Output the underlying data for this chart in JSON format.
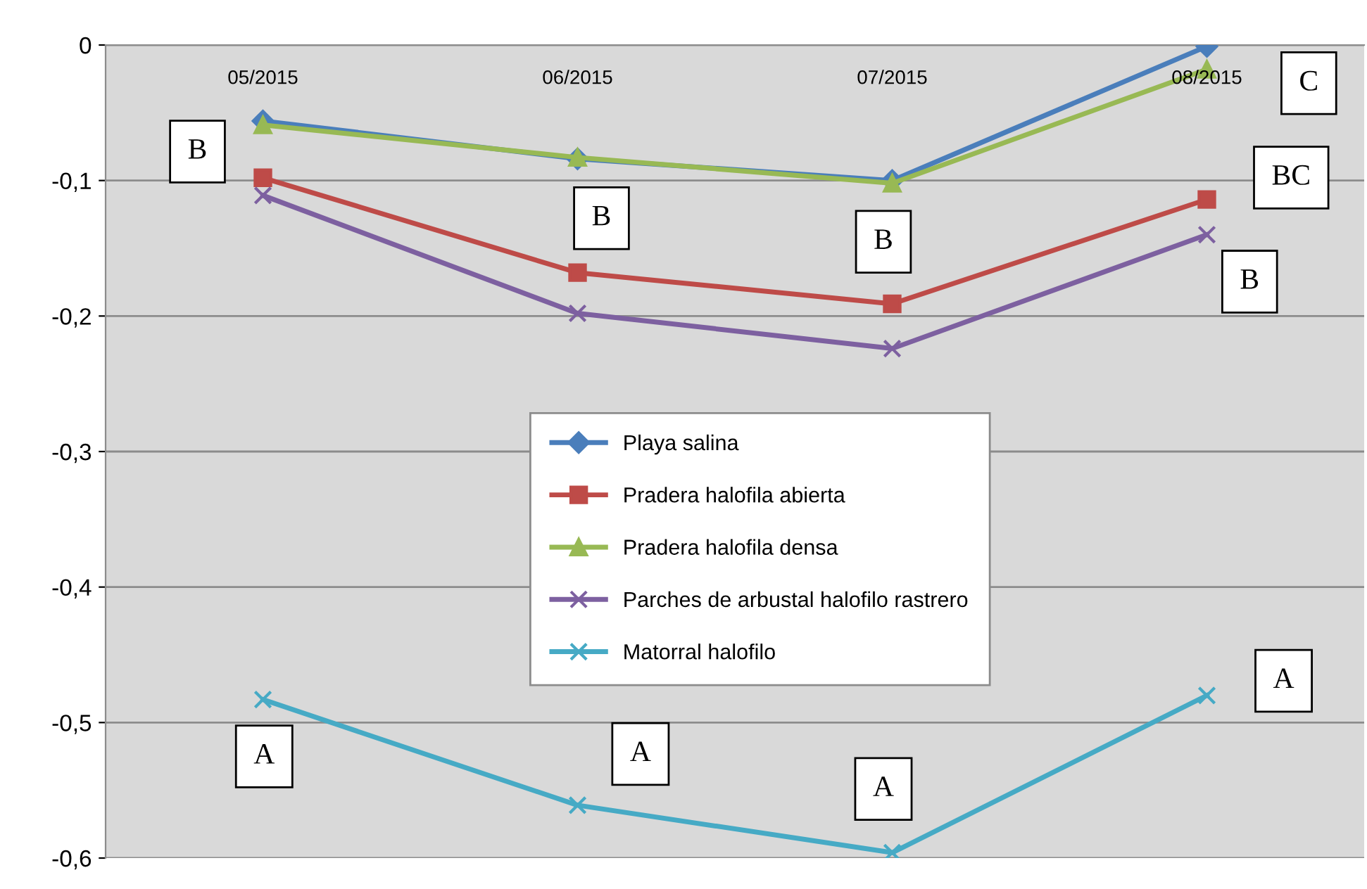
{
  "chart_data": {
    "type": "line",
    "categories": [
      "05/2015",
      "06/2015",
      "07/2015",
      "08/2015"
    ],
    "ylim": [
      -0.6,
      0
    ],
    "yticks": [
      {
        "value": -0.6,
        "label": "-0,6"
      },
      {
        "value": -0.5,
        "label": "-0,5"
      },
      {
        "value": -0.4,
        "label": "-0,4"
      },
      {
        "value": -0.3,
        "label": "-0,3"
      },
      {
        "value": -0.2,
        "label": "-0,2"
      },
      {
        "value": -0.1,
        "label": "-0,1"
      },
      {
        "value": 0,
        "label": "0"
      }
    ],
    "grid": "y",
    "legend": "center",
    "series": [
      {
        "name": "Playa salina",
        "color": "#4a7ebb",
        "marker": "diamond",
        "values": [
          -0.056,
          -0.084,
          -0.1,
          -0.001
        ]
      },
      {
        "name": "Pradera halofila abierta",
        "color": "#be4b48",
        "marker": "square",
        "values": [
          -0.098,
          -0.168,
          -0.191,
          -0.114
        ]
      },
      {
        "name": "Pradera halofila densa",
        "color": "#98b954",
        "marker": "triangle",
        "values": [
          -0.059,
          -0.083,
          -0.102,
          -0.018
        ]
      },
      {
        "name": "Parches de arbustal halofilo rastrero",
        "color": "#7d60a0",
        "marker": "cross",
        "values": [
          -0.111,
          -0.198,
          -0.224,
          -0.14
        ]
      },
      {
        "name": "Matorral halofilo",
        "color": "#46aac5",
        "marker": "cross",
        "values": [
          -0.483,
          -0.561,
          -0.596,
          -0.48
        ]
      }
    ],
    "annotations": [
      "B",
      "B",
      "B",
      "C",
      "BC",
      "B",
      "A",
      "A",
      "A",
      "A"
    ]
  }
}
